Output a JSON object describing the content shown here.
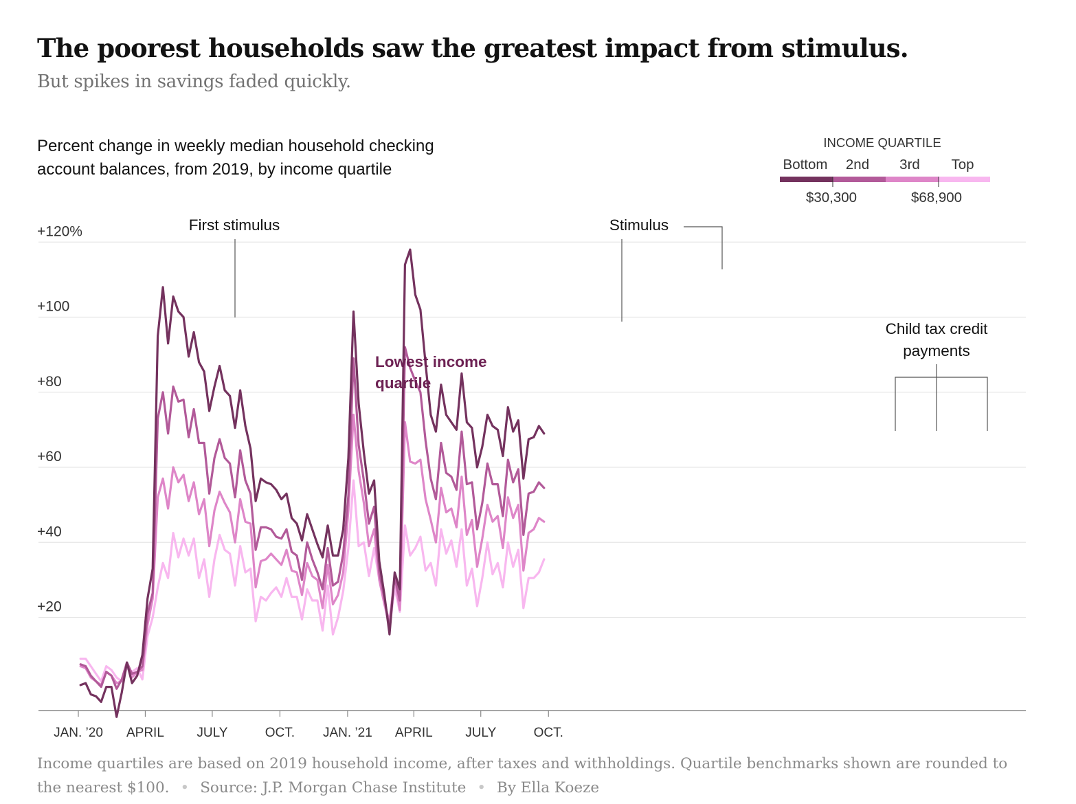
{
  "headline": "The poorest households saw the greatest impact from stimulus.",
  "subheadline": "But spikes in savings faded quickly.",
  "chart_title_line1": "Percent change in weekly median household checking",
  "chart_title_line2": "account balances, from 2019, by income quartile",
  "footer": {
    "note": "Income quartiles are based on 2019 household income, after taxes and withholdings. Quartile benchmarks shown are rounded to the nearest $100.",
    "source": "Source: J.P. Morgan Chase Institute",
    "byline": "By Ella Koeze"
  },
  "legend": {
    "title": "INCOME QUARTILE",
    "labels": [
      "Bottom",
      "2nd",
      "3rd",
      "Top"
    ],
    "benchmarks": [
      "$30,300",
      "$68,900"
    ]
  },
  "annotations": {
    "first_stimulus": "First stimulus",
    "stimulus": "Stimulus",
    "lowest_income_line1": "Lowest income",
    "lowest_income_line2": "quartile",
    "child_tax_line1": "Child tax credit",
    "child_tax_line2": "payments"
  },
  "colors": {
    "bottom": "#74325e",
    "second": "#b25a99",
    "third": "#de86c8",
    "top": "#f8b7ef",
    "label": "#6d2153",
    "axis": "#888888",
    "grid": "#e6e6e6"
  },
  "chart_data": {
    "type": "line",
    "title": "Percent change in weekly median household checking account balances, from 2019, by income quartile",
    "ylim": [
      -6,
      126
    ],
    "yticks": [
      {
        "value": 20,
        "label": "+20"
      },
      {
        "value": 40,
        "label": "+40"
      },
      {
        "value": 60,
        "label": "+60"
      },
      {
        "value": 80,
        "label": "+80"
      },
      {
        "value": 100,
        "label": "+100"
      },
      {
        "value": 120,
        "label": "+120%"
      }
    ],
    "xticks": [
      {
        "date": "2020-01-01",
        "label": "JAN. ’20"
      },
      {
        "date": "2020-04-01",
        "label": "APRIL"
      },
      {
        "date": "2020-07-01",
        "label": "JULY"
      },
      {
        "date": "2020-10-01",
        "label": "OCT."
      },
      {
        "date": "2021-01-01",
        "label": "JAN. ’21"
      },
      {
        "date": "2021-04-01",
        "label": "APRIL"
      },
      {
        "date": "2021-07-01",
        "label": "JULY"
      },
      {
        "date": "2021-10-01",
        "label": "OCT."
      }
    ],
    "x_start": "2020-01-04",
    "x_interval": "weekly",
    "grid": true,
    "legend_position": "top-right",
    "series": [
      {
        "name": "Bottom",
        "values": [
          2,
          2.5,
          -0.5,
          -1,
          -2.5,
          1.5,
          1.5,
          -6.5,
          0,
          8,
          2.5,
          4.5,
          10,
          25,
          33,
          95,
          108,
          93,
          105.5,
          101.5,
          100,
          89.5,
          96,
          88,
          85.5,
          75,
          81.5,
          87,
          80.5,
          79,
          70.5,
          80.5,
          71,
          65,
          51,
          57,
          56,
          55.5,
          54,
          51.5,
          53,
          46.5,
          45,
          40.5,
          47.5,
          43.5,
          39.5,
          36,
          44.5,
          36.5,
          36.5,
          43.5,
          62.5,
          101.5,
          77,
          64,
          53,
          56.5,
          35,
          26,
          15.5,
          32,
          27.5,
          114,
          118,
          106,
          102,
          87.5,
          74,
          69.5,
          82,
          74,
          72,
          70,
          85,
          72,
          70.5,
          60,
          65.5,
          74,
          71,
          70,
          63,
          76,
          69.5,
          72.5,
          57,
          67.5,
          68,
          71,
          69
        ]
      },
      {
        "name": "2nd",
        "values": [
          7.5,
          7,
          4.5,
          3,
          1.5,
          5.5,
          4.5,
          1,
          3.5,
          8,
          5,
          5.5,
          7,
          21,
          26.5,
          73,
          80,
          69,
          81.5,
          77.5,
          78,
          68,
          75.5,
          66.5,
          66.5,
          53,
          62.5,
          67.5,
          62.5,
          61,
          52,
          64.5,
          56.5,
          53,
          38,
          44,
          44,
          43.5,
          41.5,
          41,
          43.5,
          37.5,
          36.5,
          30,
          40,
          35.5,
          32,
          27.5,
          38.5,
          28.5,
          29.5,
          37,
          52.5,
          89,
          66,
          56.5,
          45,
          49.5,
          32,
          25,
          17,
          31,
          24.5,
          92,
          86.5,
          83,
          80,
          67,
          57,
          51.5,
          66.5,
          58.5,
          57.5,
          54,
          69.5,
          55.5,
          56,
          43.5,
          50.5,
          61,
          55.5,
          55.5,
          47,
          62,
          56,
          59.5,
          42,
          53,
          53.5,
          56,
          54.5
        ]
      },
      {
        "name": "3rd",
        "values": [
          7,
          6.5,
          4,
          3,
          2,
          5.5,
          4.5,
          2.5,
          3,
          8,
          4,
          5.5,
          6,
          18,
          25,
          52,
          57,
          49,
          60,
          56,
          58,
          51,
          56,
          47.5,
          51.5,
          39,
          48.5,
          53.5,
          50.5,
          48,
          40,
          51.5,
          45.5,
          45,
          28,
          35,
          35.5,
          37,
          35.5,
          34,
          38,
          32.5,
          32,
          26,
          34.5,
          31,
          30,
          22.5,
          34,
          23.5,
          26,
          32,
          48.5,
          74,
          59,
          50.5,
          39,
          43.5,
          30,
          23.5,
          19,
          31,
          22,
          72,
          61.5,
          61,
          62,
          51.5,
          46,
          40,
          54.5,
          48,
          49,
          44,
          57.5,
          42,
          46,
          33.5,
          41,
          50,
          45.5,
          47,
          38.5,
          52,
          46.5,
          50,
          32.5,
          42.5,
          43.5,
          46.5,
          45.5
        ]
      },
      {
        "name": "Top",
        "values": [
          9,
          9,
          7,
          5,
          3,
          7,
          6,
          4,
          3,
          6.5,
          5.5,
          6.5,
          3.5,
          15,
          20,
          28,
          34.5,
          30.5,
          42.5,
          36,
          41,
          36.5,
          41,
          30.5,
          35.5,
          25.5,
          35.5,
          42,
          38,
          37,
          28.5,
          39,
          32,
          33,
          19,
          25.5,
          24.5,
          26.5,
          28,
          25.5,
          30.5,
          25.5,
          25.5,
          19.5,
          27.5,
          24.5,
          24.5,
          16.5,
          28.5,
          15.5,
          20,
          27,
          38.5,
          56.5,
          39,
          40,
          31,
          38.5,
          30,
          23.5,
          17,
          28,
          21.5,
          44.5,
          36.5,
          38.5,
          41.5,
          32.5,
          34.5,
          28.5,
          43.5,
          37,
          40.5,
          33.5,
          43.5,
          28.5,
          33,
          23,
          30.5,
          40,
          31.5,
          34.5,
          28,
          40,
          33.5,
          38,
          22.5,
          30.5,
          30.5,
          32,
          35.5
        ]
      }
    ]
  }
}
